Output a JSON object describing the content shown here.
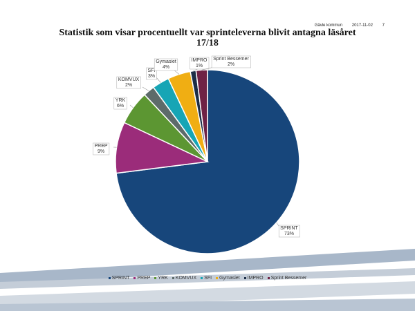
{
  "header": {
    "org": "Gävle kommun",
    "date": "2017-11-02",
    "page": "7"
  },
  "chart_data": {
    "type": "pie",
    "title": "Statistik som visar procentuellt var sprinteleverna blivit antagna läsåret 17/18",
    "legend_position": "bottom",
    "categories": [
      "SPRINT",
      "PREP",
      "YRK",
      "KOMVUX",
      "SFI",
      "Gymasiet",
      "IMPRO",
      "Sprint Bessemer"
    ],
    "values": [
      73,
      9,
      6,
      2,
      3,
      4,
      1,
      2
    ],
    "value_labels": [
      "73%",
      "9%",
      "6%",
      "2%",
      "3%",
      "4%",
      "1%",
      "2%"
    ],
    "colors": [
      "#17467b",
      "#9b2c7a",
      "#5c9632",
      "#5d6b6a",
      "#17a5b5",
      "#f0ae13",
      "#1c2d46",
      "#6f2245"
    ]
  }
}
